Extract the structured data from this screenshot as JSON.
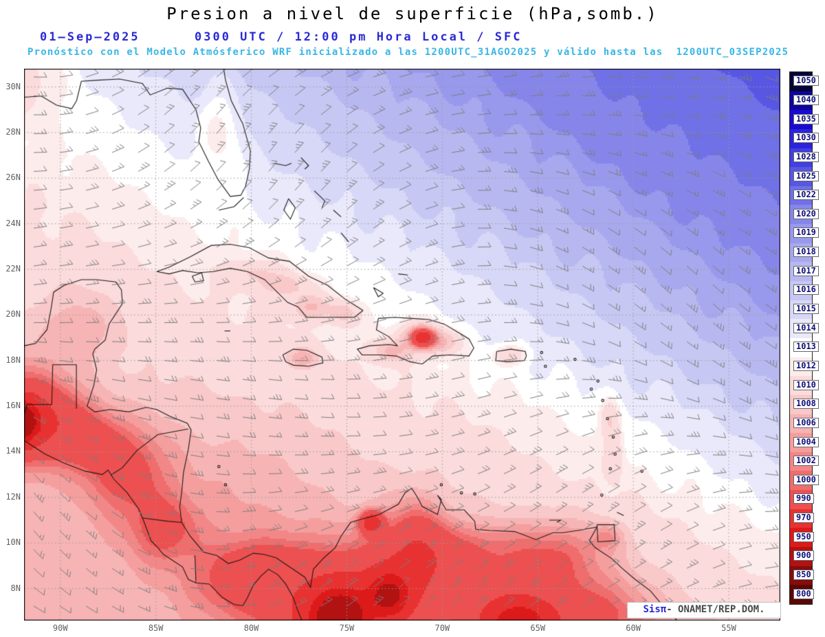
{
  "header": {
    "title": "Presion a nivel de superficie (hPa,somb.)",
    "datetime_line": "01–Sep–2025      0300 UTC / 12:00 pm Hora Local / SFC",
    "forecast_line": "Pronóstico con el Modelo Atmósferico WRF inicializado a las 1200UTC_31AGO2025 y válido hasta las  1200UTC_03SEP2025",
    "title_color": "#000000",
    "datetime_color": "#2a2ad4",
    "forecast_color": "#38b6e6"
  },
  "axes": {
    "lat_ticks": [
      "30N",
      "28N",
      "26N",
      "24N",
      "22N",
      "20N",
      "18N",
      "16N",
      "14N",
      "12N",
      "10N",
      "8N"
    ],
    "lon_ticks": [
      "90W",
      "85W",
      "80W",
      "75W",
      "70W",
      "65W",
      "60W",
      "55W"
    ]
  },
  "colorbar": {
    "levels": [
      "1050",
      "1040",
      "1035",
      "1030",
      "1028",
      "1025",
      "1022",
      "1020",
      "1019",
      "1018",
      "1017",
      "1016",
      "1015",
      "1014",
      "1013",
      "1012",
      "1010",
      "1008",
      "1006",
      "1004",
      "1002",
      "1000",
      "990",
      "970",
      "950",
      "900",
      "850",
      "800"
    ],
    "colors": [
      "#050238",
      "#0d05a0",
      "#1a0ad0",
      "#2d23dc",
      "#4140e0",
      "#5757e3",
      "#7070e7",
      "#8686ea",
      "#9898ec",
      "#a8a8ee",
      "#b8b8f1",
      "#c7c7f4",
      "#d7d7f7",
      "#e9e9fb",
      "#ffffff",
      "#fdecec",
      "#fbdbdb",
      "#f9c8c8",
      "#f7b4b4",
      "#f59e9e",
      "#f28787",
      "#f06d6d",
      "#ed5050",
      "#e83232",
      "#dd1a1a",
      "#b21212",
      "#870c0c",
      "#5c0707"
    ]
  },
  "watermark": {
    "brand": "Sisπ",
    "agency": "- ONAMET/REP.DOM.",
    "brand_color": "#2a2ad4",
    "agency_color": "#4a4a4a"
  },
  "chart_data": {
    "type": "heatmap",
    "title": "Presion a nivel de superficie (hPa,somb.)",
    "units": "hPa",
    "x_ticks": [
      "90W",
      "85W",
      "80W",
      "75W",
      "70W",
      "65W",
      "60W",
      "55W"
    ],
    "y_ticks": [
      "30N",
      "28N",
      "26N",
      "24N",
      "22N",
      "20N",
      "18N",
      "16N",
      "14N",
      "12N",
      "10N",
      "8N"
    ],
    "colorbar_levels_hpa": [
      1050,
      1040,
      1035,
      1030,
      1028,
      1025,
      1022,
      1020,
      1019,
      1018,
      1017,
      1016,
      1015,
      1014,
      1013,
      1012,
      1010,
      1008,
      1006,
      1004,
      1002,
      1000,
      990,
      970,
      950,
      900,
      850,
      800
    ],
    "legend_position": "right",
    "grid": true,
    "overlay": "wind barbs"
  }
}
